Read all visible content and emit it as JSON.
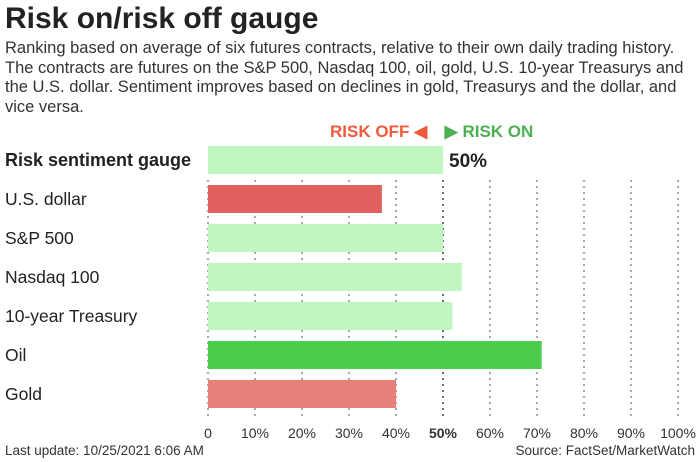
{
  "title": "Risk on/risk off gauge",
  "subtitle": "Ranking based on average of six futures contracts, relative to their own daily trading history. The contracts are futures on the S&P 500, Nasdaq 100, oil, gold, U.S. 10-year Treasurys and the U.S. dollar. Sentiment improves based on declines in gold, Treasurys and the dollar, and vice versa.",
  "legend": {
    "risk_off": "RISK OFF",
    "risk_on": "RISK ON",
    "risk_off_color": "#f05a3c",
    "risk_on_color": "#4caf50"
  },
  "footer": {
    "updated": "Last update: 10/25/2021 6:06 AM",
    "source": "Source: FactSet/MarketWatch"
  },
  "chart_data": {
    "type": "bar",
    "orientation": "horizontal",
    "categories": [
      "Risk sentiment gauge",
      "U.S. dollar",
      "S&P 500",
      "Nasdaq 100",
      "10-year Treasury",
      "Oil",
      "Gold"
    ],
    "values": [
      50,
      37,
      50,
      54,
      52,
      71,
      40
    ],
    "colors": [
      "#c0f7c0",
      "#e0615e",
      "#c0f7c0",
      "#c0f7c0",
      "#c0f7c0",
      "#4ccc4c",
      "#e8807a"
    ],
    "data_labels": [
      "50%",
      "",
      "",
      "",
      "",
      "",
      ""
    ],
    "xlim": [
      0,
      100
    ],
    "xticks": [
      "0",
      "10%",
      "20%",
      "30%",
      "40%",
      "50%",
      "60%",
      "70%",
      "80%",
      "90%",
      "100%"
    ],
    "grid": true
  }
}
